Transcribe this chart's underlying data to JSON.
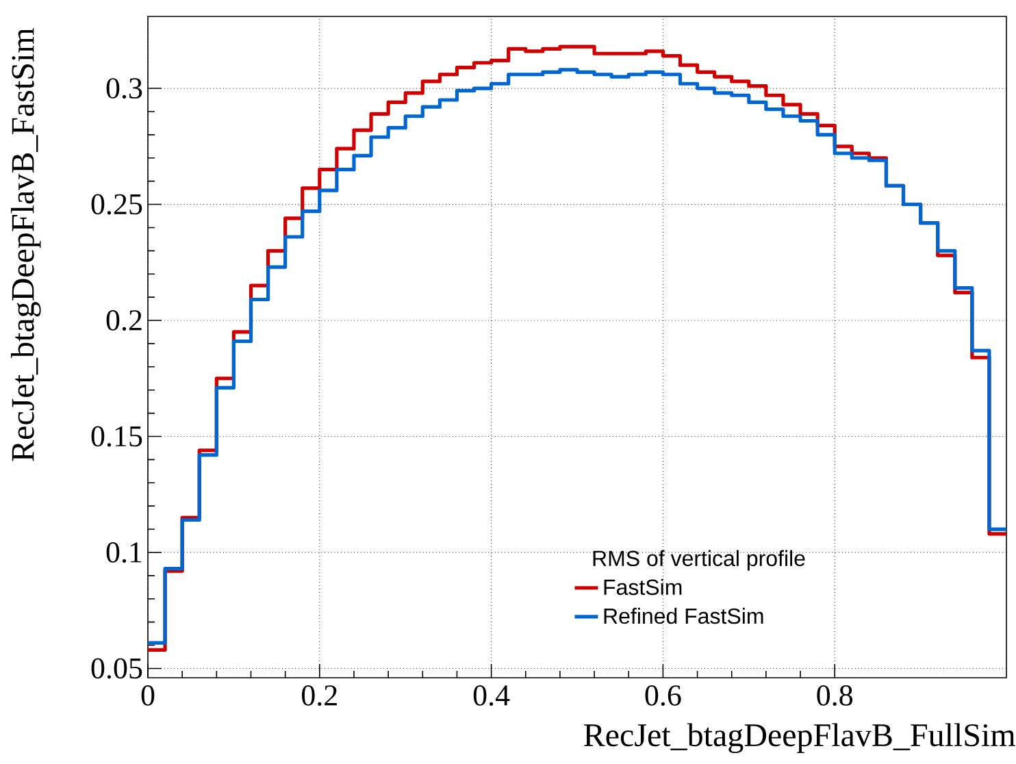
{
  "chart_data": {
    "type": "histogram",
    "xlabel": "RecJet_btagDeepFlavB_FullSim",
    "ylabel": "RecJet_btagDeepFlavB_FastSim",
    "legend_title": "RMS of vertical profile",
    "bins": [
      0,
      0.02,
      0.04,
      0.06,
      0.08,
      0.1,
      0.12,
      0.14,
      0.16,
      0.18,
      0.2,
      0.22,
      0.24,
      0.26,
      0.28,
      0.3,
      0.32,
      0.34,
      0.36,
      0.38,
      0.4,
      0.42,
      0.44,
      0.46,
      0.48,
      0.5,
      0.52,
      0.54,
      0.56,
      0.58,
      0.6,
      0.62,
      0.64,
      0.66,
      0.68,
      0.7,
      0.72,
      0.74,
      0.76,
      0.78,
      0.8,
      0.82,
      0.84,
      0.86,
      0.88,
      0.9,
      0.92,
      0.94,
      0.96,
      0.98,
      1.0
    ],
    "series": [
      {
        "name": "FastSim",
        "color": "#d00000",
        "values": [
          0.058,
          0.092,
          0.115,
          0.144,
          0.175,
          0.195,
          0.215,
          0.23,
          0.244,
          0.257,
          0.265,
          0.274,
          0.282,
          0.289,
          0.294,
          0.298,
          0.303,
          0.306,
          0.309,
          0.311,
          0.312,
          0.317,
          0.316,
          0.317,
          0.318,
          0.318,
          0.315,
          0.315,
          0.315,
          0.316,
          0.314,
          0.31,
          0.307,
          0.305,
          0.303,
          0.301,
          0.297,
          0.293,
          0.289,
          0.284,
          0.275,
          0.272,
          0.27,
          0.258,
          0.25,
          0.242,
          0.228,
          0.212,
          0.184,
          0.108
        ]
      },
      {
        "name": "Refined FastSim",
        "color": "#0066d0",
        "values": [
          0.061,
          0.093,
          0.114,
          0.142,
          0.171,
          0.191,
          0.209,
          0.223,
          0.236,
          0.247,
          0.256,
          0.265,
          0.271,
          0.279,
          0.283,
          0.288,
          0.292,
          0.295,
          0.299,
          0.3,
          0.302,
          0.306,
          0.306,
          0.307,
          0.308,
          0.307,
          0.306,
          0.305,
          0.306,
          0.307,
          0.306,
          0.302,
          0.3,
          0.298,
          0.297,
          0.294,
          0.291,
          0.288,
          0.286,
          0.28,
          0.272,
          0.27,
          0.269,
          0.258,
          0.25,
          0.242,
          0.23,
          0.214,
          0.187,
          0.11
        ]
      }
    ],
    "xlim": [
      0,
      1
    ],
    "ylim": [
      0.046,
      0.331
    ],
    "xticks": [
      0,
      0.2,
      0.4,
      0.6,
      0.8
    ],
    "yticks": [
      0.05,
      0.1,
      0.15,
      0.2,
      0.25,
      0.3
    ],
    "grid": true,
    "legend": "bottom right"
  }
}
